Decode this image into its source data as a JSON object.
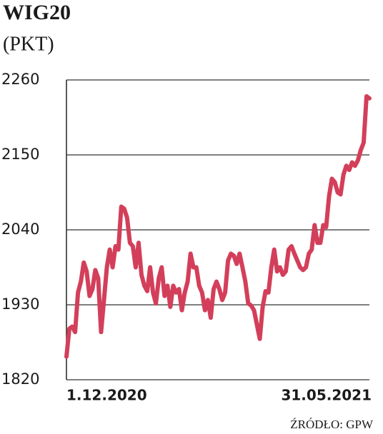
{
  "chart_data": {
    "type": "line",
    "title": "WIG20",
    "subtitle": "(PKT)",
    "source": "ŹRÓDŁO: GPW",
    "categories": [
      "1.12.2020",
      null,
      null,
      null,
      null,
      null,
      null,
      null,
      null,
      null,
      null,
      null,
      null,
      null,
      null,
      null,
      null,
      null,
      null,
      null,
      null,
      null,
      null,
      null,
      null,
      null,
      null,
      null,
      null,
      null,
      null,
      null,
      null,
      null,
      null,
      null,
      null,
      null,
      null,
      null,
      null,
      null,
      null,
      null,
      null,
      null,
      null,
      null,
      null,
      null,
      null,
      null,
      null,
      null,
      null,
      null,
      null,
      null,
      null,
      null,
      null,
      null,
      null,
      null,
      null,
      null,
      null,
      null,
      null,
      null,
      null,
      null,
      null,
      null,
      null,
      null,
      null,
      null,
      null,
      null,
      null,
      null,
      null,
      null,
      null,
      null,
      null,
      null,
      null,
      null,
      null,
      null,
      null,
      null,
      null,
      null,
      null,
      null,
      null,
      null,
      null,
      null,
      null,
      null,
      null,
      "31.05.2021"
    ],
    "series": [
      {
        "color": "#d33f5a",
        "values": [
          1854,
          1895,
          1898,
          1890,
          1948,
          1964,
          1992,
          1979,
          1943,
          1953,
          1981,
          1969,
          1890,
          1937,
          1985,
          2011,
          1985,
          2016,
          2011,
          2074,
          2071,
          2058,
          2021,
          2016,
          1985,
          2021,
          1974,
          1958,
          1950,
          1985,
          1948,
          1932,
          1969,
          1985,
          1943,
          1958,
          1927,
          1958,
          1948,
          1953,
          1922,
          1948,
          1964,
          2005,
          1985,
          1985,
          1958,
          1948,
          1922,
          1937,
          1911,
          1953,
          1964,
          1953,
          1937,
          1948,
          1995,
          2005,
          2002,
          1990,
          2005,
          1985,
          1964,
          1932,
          1929,
          1922,
          1901,
          1880,
          1927,
          1950,
          1948,
          1985,
          2011,
          1979,
          1985,
          1974,
          1979,
          2011,
          2016,
          2005,
          1995,
          1985,
          1981,
          1985,
          2005,
          2011,
          2047,
          2021,
          2021,
          2047,
          2044,
          2089,
          2115,
          2110,
          2095,
          2092,
          2121,
          2134,
          2128,
          2139,
          2134,
          2142,
          2157,
          2168,
          2236,
          2233
        ]
      }
    ],
    "ylim": [
      1820,
      2260
    ],
    "yticks": [
      1820,
      1930,
      2040,
      2150,
      2260
    ],
    "grid": true
  }
}
